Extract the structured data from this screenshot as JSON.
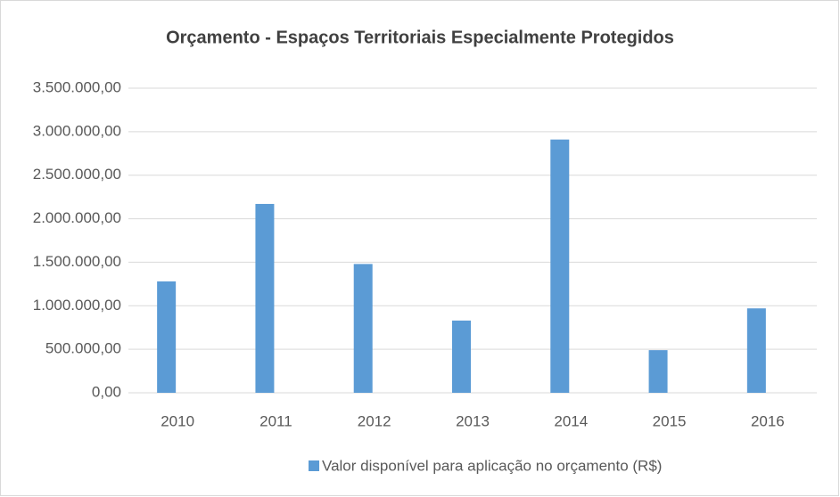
{
  "chart_data": {
    "type": "bar",
    "title": "Orçamento - Espaços Territoriais Especialmente Protegidos",
    "categories": [
      "2010",
      "2011",
      "2012",
      "2013",
      "2014",
      "2015",
      "2016"
    ],
    "series": [
      {
        "name": "Valor disponível para aplicação no orçamento (R$)",
        "color": "#5b9bd5",
        "values": [
          1280000,
          2170000,
          1480000,
          830000,
          2910000,
          490000,
          970000
        ]
      }
    ],
    "ylim": [
      0,
      3500000
    ],
    "yticks": [
      {
        "value": 0,
        "label": "0,00"
      },
      {
        "value": 500000,
        "label": "500.000,00"
      },
      {
        "value": 1000000,
        "label": "1.000.000,00"
      },
      {
        "value": 1500000,
        "label": "1.500.000,00"
      },
      {
        "value": 2000000,
        "label": "2.000.000,00"
      },
      {
        "value": 2500000,
        "label": "2.500.000,00"
      },
      {
        "value": 3000000,
        "label": "3.000.000,00"
      },
      {
        "value": 3500000,
        "label": "3.500.000,00"
      }
    ],
    "grid": true,
    "legend": "bottom"
  }
}
